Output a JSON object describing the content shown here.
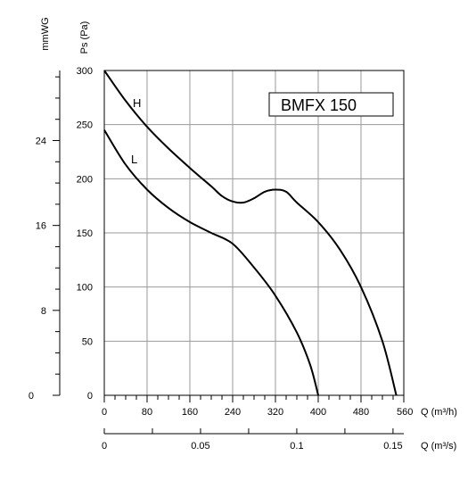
{
  "chart_data": {
    "type": "line",
    "title": "BMFX 150",
    "x_primary": {
      "label": "Q (m³/h)",
      "ticks": [
        "0",
        "80",
        "160",
        "240",
        "320",
        "400",
        "480",
        "560"
      ],
      "range": [
        0,
        560
      ]
    },
    "x_secondary": {
      "label": "Q (m³/s)",
      "ticks": [
        "0",
        "0.05",
        "0.1",
        "0.15"
      ],
      "range": [
        0,
        0.1556
      ]
    },
    "y_primary": {
      "label": "Ps (Pa)",
      "ticks": [
        "0",
        "50",
        "100",
        "150",
        "200",
        "250",
        "300"
      ],
      "range": [
        0,
        300
      ]
    },
    "y_secondary": {
      "label": "mmWG",
      "ticks": [
        "0",
        "8",
        "16",
        "24"
      ],
      "range": [
        0,
        30.6
      ]
    },
    "grid": true,
    "series": [
      {
        "name": "H",
        "points": [
          [
            0,
            300
          ],
          [
            40,
            272
          ],
          [
            80,
            248
          ],
          [
            120,
            228
          ],
          [
            160,
            210
          ],
          [
            200,
            193
          ],
          [
            220,
            184
          ],
          [
            240,
            179
          ],
          [
            260,
            178
          ],
          [
            280,
            182
          ],
          [
            300,
            188
          ],
          [
            320,
            190
          ],
          [
            340,
            188
          ],
          [
            360,
            178
          ],
          [
            400,
            160
          ],
          [
            440,
            135
          ],
          [
            480,
            100
          ],
          [
            520,
            50
          ],
          [
            546,
            0
          ]
        ]
      },
      {
        "name": "L",
        "points": [
          [
            0,
            245
          ],
          [
            40,
            213
          ],
          [
            80,
            190
          ],
          [
            120,
            173
          ],
          [
            160,
            160
          ],
          [
            200,
            150
          ],
          [
            240,
            140
          ],
          [
            280,
            118
          ],
          [
            320,
            92
          ],
          [
            360,
            58
          ],
          [
            385,
            28
          ],
          [
            400,
            0
          ]
        ]
      }
    ]
  }
}
